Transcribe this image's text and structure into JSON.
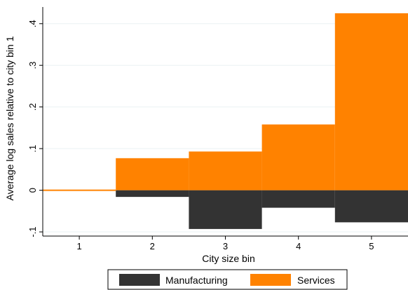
{
  "chart_data": {
    "type": "bar",
    "xlabel": "City size bin",
    "ylabel": "Average log sales relative to city bin 1",
    "categories": [
      "1",
      "2",
      "3",
      "4",
      "5"
    ],
    "x_ticks": [
      "1",
      "2",
      "3",
      "4",
      "5"
    ],
    "y_ticks": [
      {
        "value": -0.1,
        "label": "-.1"
      },
      {
        "value": 0,
        "label": "0"
      },
      {
        "value": 0.1,
        "label": ".1"
      },
      {
        "value": 0.2,
        "label": ".2"
      },
      {
        "value": 0.3,
        "label": ".3"
      },
      {
        "value": 0.4,
        "label": ".4"
      }
    ],
    "xlim": [
      0.5,
      5.5
    ],
    "ylim": [
      -0.11,
      0.44
    ],
    "grid": true,
    "legend_position": "bottom",
    "series": [
      {
        "name": "Manufacturing",
        "color": "#333333",
        "values": [
          0,
          -0.016,
          -0.093,
          -0.042,
          -0.077
        ]
      },
      {
        "name": "Services",
        "color": "#ff8200",
        "values": [
          0,
          0.077,
          0.093,
          0.158,
          0.425
        ]
      }
    ]
  }
}
